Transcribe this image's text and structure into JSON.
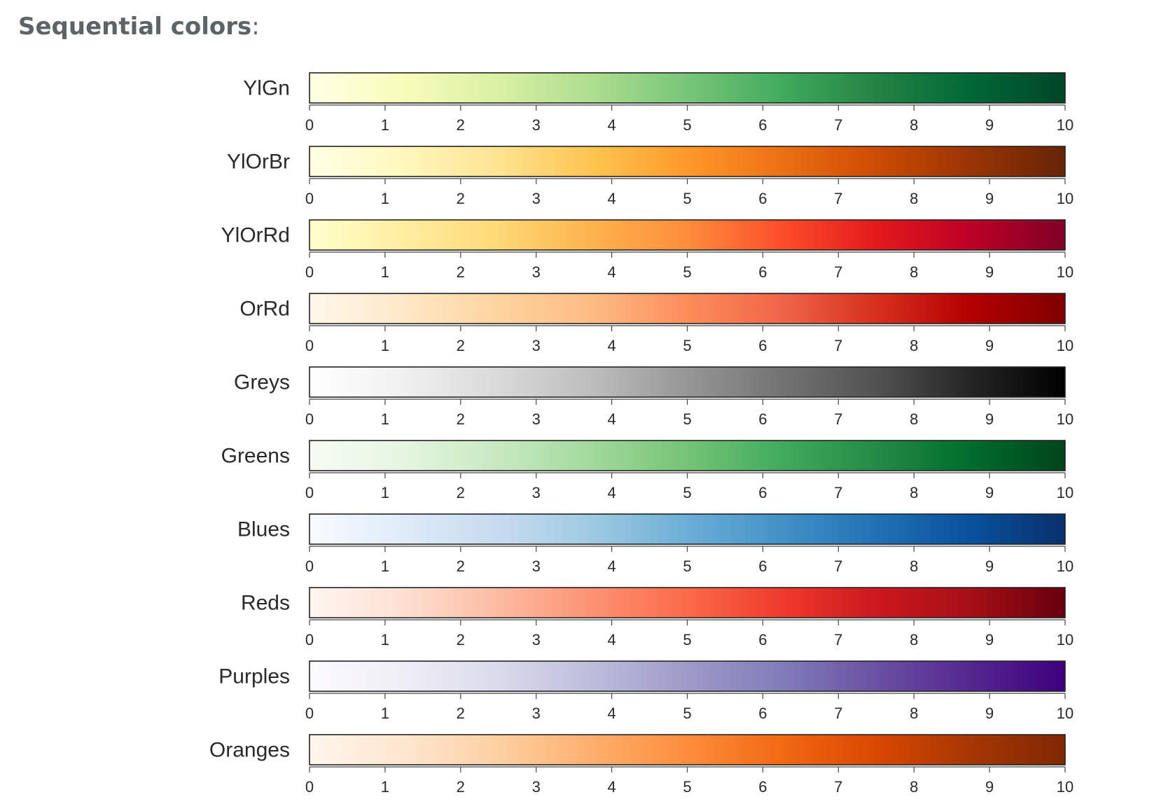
{
  "heading": {
    "title": "Sequential colors",
    "colon": ":"
  },
  "chart_data": {
    "type": "heatmap",
    "title": "",
    "xlabel": "",
    "ylabel": "",
    "xlim": [
      0,
      10
    ],
    "x_ticks": [
      0,
      1,
      2,
      3,
      4,
      5,
      6,
      7,
      8,
      9,
      10
    ],
    "palettes": [
      {
        "name": "YlGn",
        "colors": [
          "#ffffe5",
          "#f7fcb9",
          "#d9f0a3",
          "#addd8e",
          "#78c679",
          "#41ab5d",
          "#238443",
          "#006837",
          "#004529"
        ]
      },
      {
        "name": "YlOrBr",
        "colors": [
          "#ffffe5",
          "#fff7bc",
          "#fee391",
          "#fec44f",
          "#fe9929",
          "#ec7014",
          "#cc4c02",
          "#993404",
          "#662506"
        ]
      },
      {
        "name": "YlOrRd",
        "colors": [
          "#ffffcc",
          "#ffeda0",
          "#fed976",
          "#feb24c",
          "#fd8d3c",
          "#fc4e2a",
          "#e31a1c",
          "#bd0026",
          "#800026"
        ]
      },
      {
        "name": "OrRd",
        "colors": [
          "#fff7ec",
          "#fee8c8",
          "#fdd49e",
          "#fdbb84",
          "#fc8d59",
          "#ef6548",
          "#d7301f",
          "#b30000",
          "#7f0000"
        ]
      },
      {
        "name": "Greys",
        "colors": [
          "#ffffff",
          "#f0f0f0",
          "#d9d9d9",
          "#bdbdbd",
          "#969696",
          "#737373",
          "#525252",
          "#252525",
          "#000000"
        ]
      },
      {
        "name": "Greens",
        "colors": [
          "#f7fcf5",
          "#e5f5e0",
          "#c7e9c0",
          "#a1d99b",
          "#74c476",
          "#41ab5d",
          "#238b45",
          "#006d2c",
          "#00441b"
        ]
      },
      {
        "name": "Blues",
        "colors": [
          "#f7fbff",
          "#deebf7",
          "#c6dbef",
          "#9ecae1",
          "#6baed6",
          "#4292c6",
          "#2171b5",
          "#08519c",
          "#08306b"
        ]
      },
      {
        "name": "Reds",
        "colors": [
          "#fff5f0",
          "#fee0d2",
          "#fcbba1",
          "#fc9272",
          "#fb6a4a",
          "#ef3b2c",
          "#cb181d",
          "#a50f15",
          "#67000d"
        ]
      },
      {
        "name": "Purples",
        "colors": [
          "#fcfbfd",
          "#efedf5",
          "#dadaeb",
          "#bcbddc",
          "#9e9ac8",
          "#807dba",
          "#6a51a3",
          "#54278f",
          "#3f007d"
        ]
      },
      {
        "name": "Oranges",
        "colors": [
          "#fff5eb",
          "#fee6ce",
          "#fdd0a2",
          "#fdae6b",
          "#fd8d3c",
          "#f16913",
          "#d94801",
          "#a63603",
          "#7f2704"
        ]
      }
    ]
  }
}
